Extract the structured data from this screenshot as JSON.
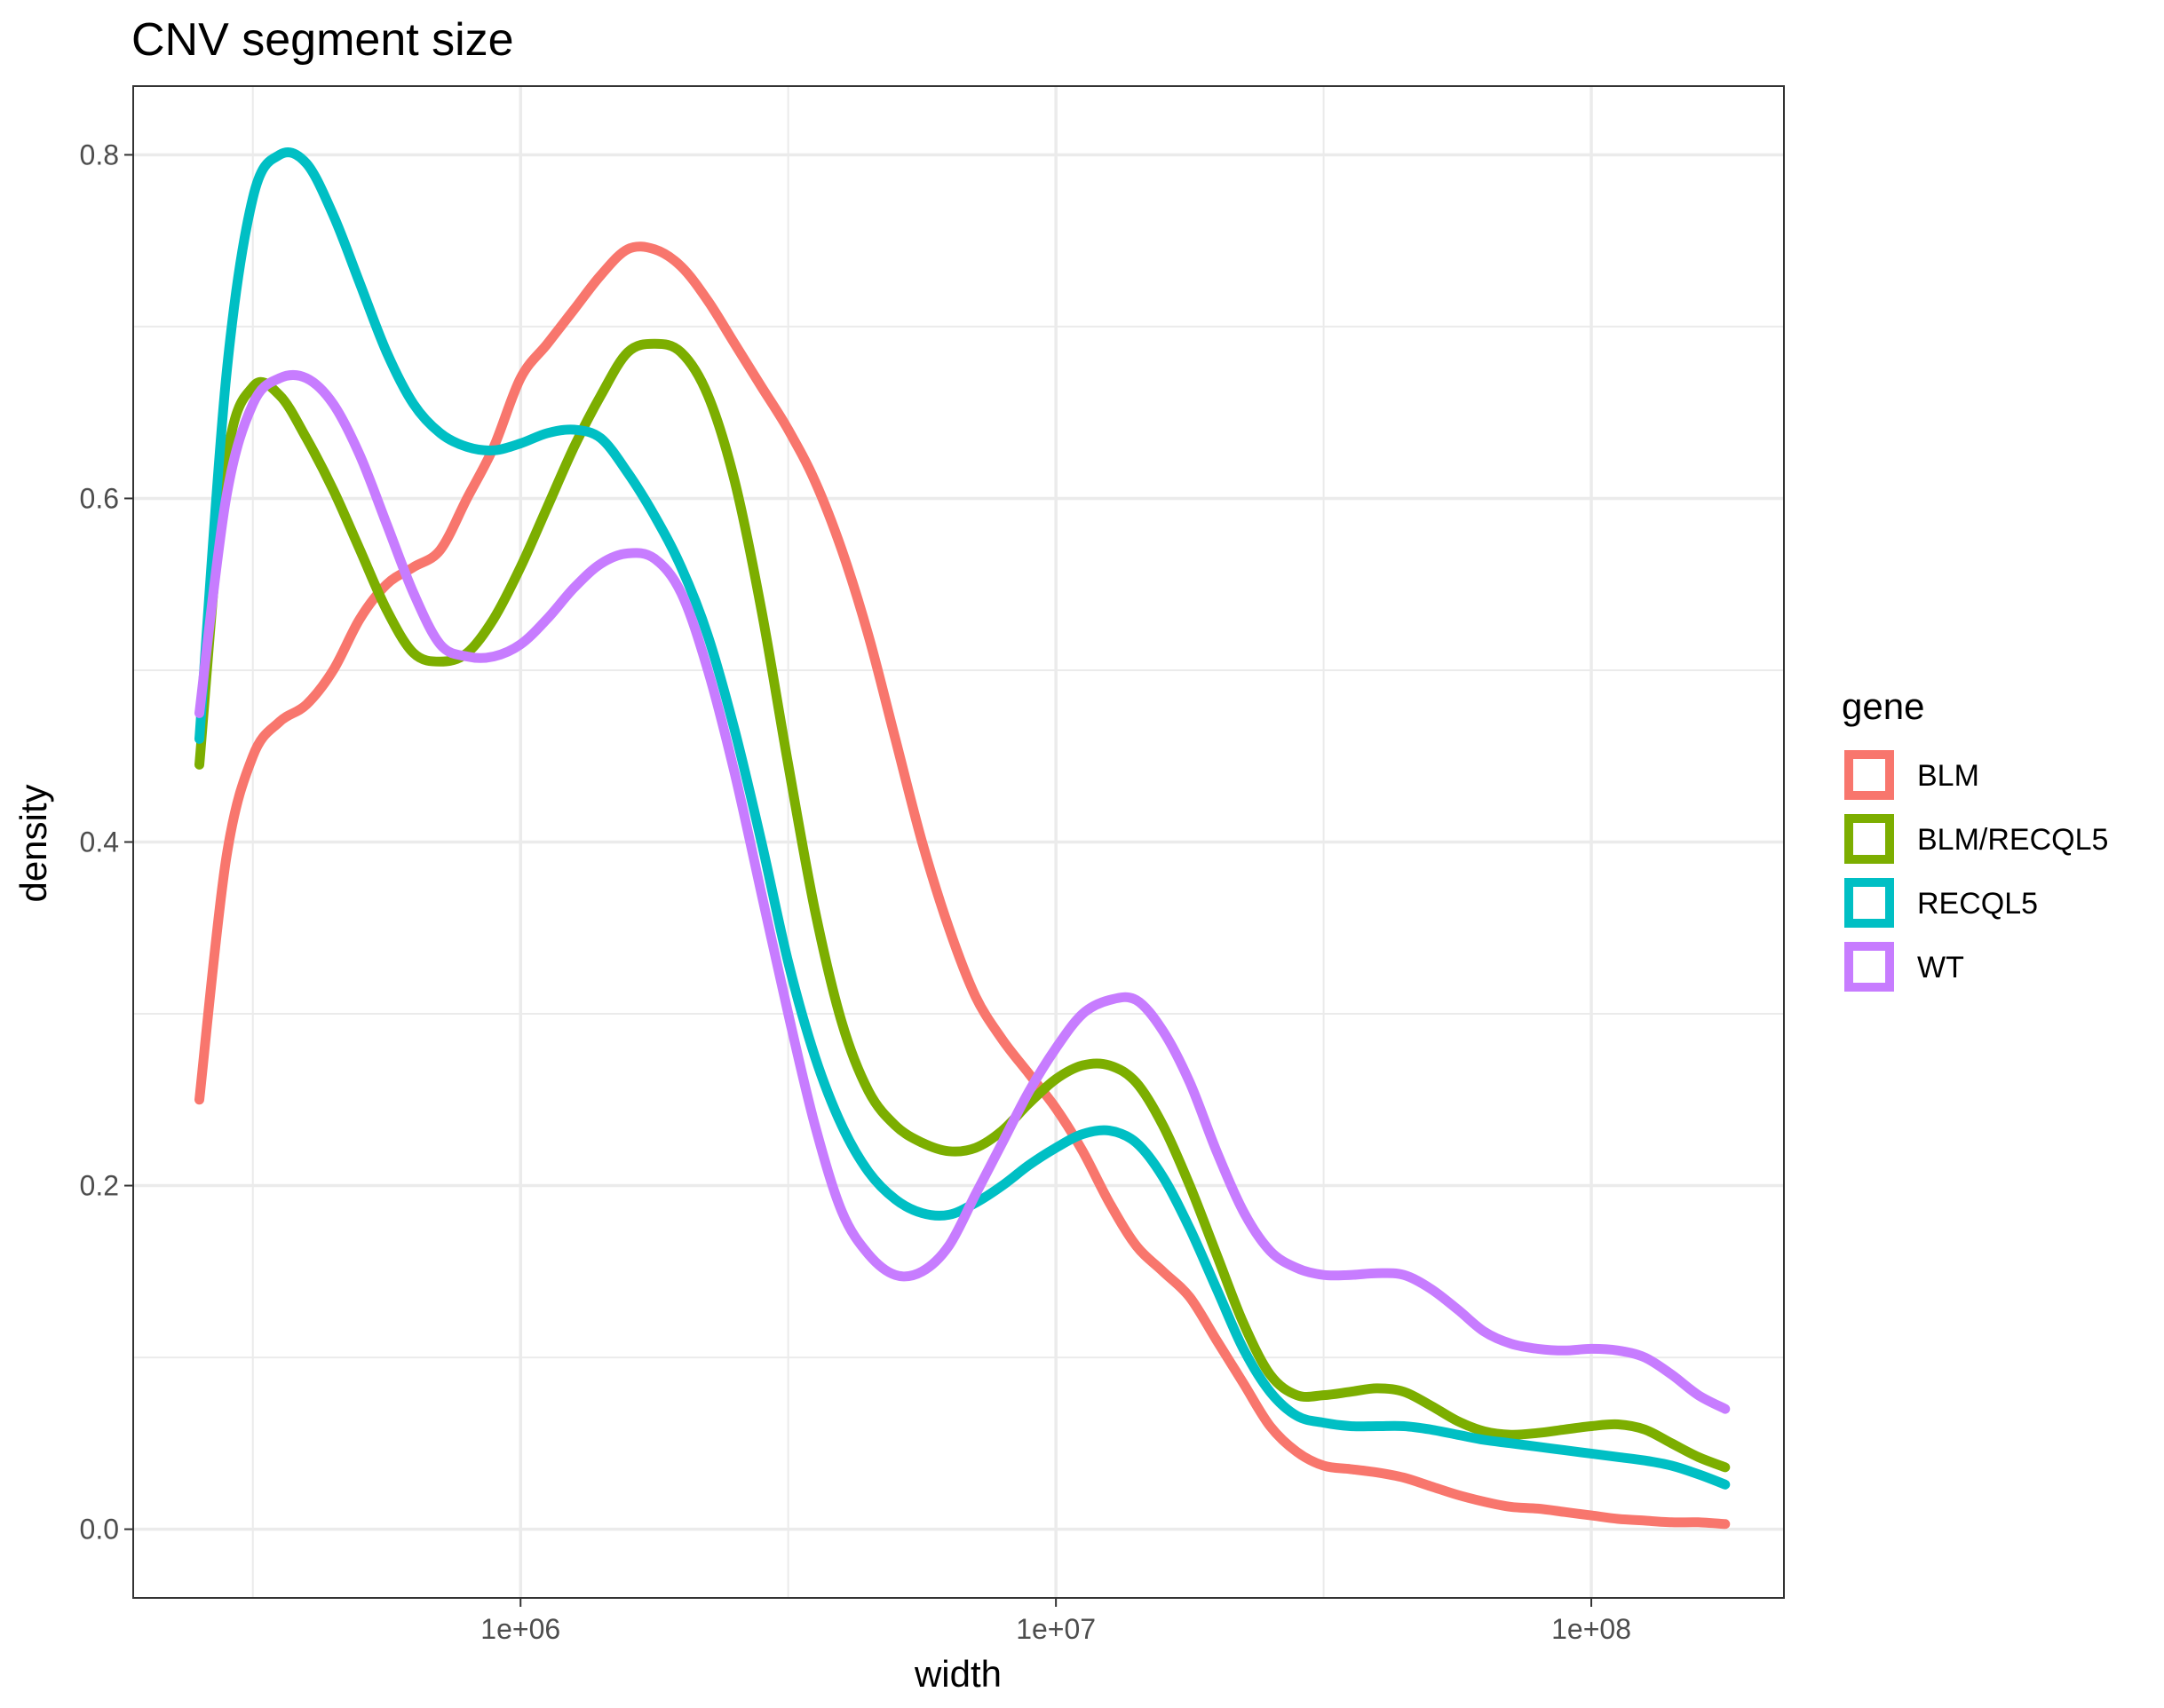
{
  "chart_data": {
    "type": "line",
    "title": "CNV segment size",
    "xlabel": "width",
    "ylabel": "density",
    "x_scale": "log10",
    "xlim": [
      189000,
      229000000
    ],
    "ylim": [
      -0.04,
      0.84
    ],
    "x_ticks": [
      {
        "value": 1000000,
        "label": "1e+06"
      },
      {
        "value": 10000000,
        "label": "1e+07"
      },
      {
        "value": 100000000,
        "label": "1e+08"
      }
    ],
    "x_minor_ticks": [
      316228,
      3162278,
      31622777
    ],
    "y_ticks": [
      {
        "value": 0.0,
        "label": "0.0"
      },
      {
        "value": 0.2,
        "label": "0.2"
      },
      {
        "value": 0.4,
        "label": "0.4"
      },
      {
        "value": 0.6,
        "label": "0.6"
      },
      {
        "value": 0.8,
        "label": "0.8"
      }
    ],
    "y_minor_ticks": [
      0.1,
      0.3,
      0.5,
      0.7
    ],
    "grid": true,
    "legend": {
      "title": "gene",
      "position": "right"
    },
    "series": [
      {
        "name": "BLM",
        "color": "#F8766D",
        "x": [
          251189,
          281838,
          316228,
          354813,
          398107,
          446684,
          501187,
          562341,
          630957,
          707946,
          794328,
          891251,
          1000000,
          1122018,
          1258925,
          1412538,
          1584893,
          1778279,
          1995262,
          2238721,
          2511886,
          2818383,
          3162278,
          3548134,
          3981072,
          4466836,
          5011872,
          5623413,
          6309573,
          7079458,
          7943282,
          8912509,
          10000000,
          11220185,
          12589254,
          14125375,
          15848932,
          17782794,
          19952623,
          22387211,
          25118864,
          28183829,
          31622777,
          35481339,
          39810717,
          44668359,
          50118723,
          56234133,
          63095734,
          70794578,
          79432823,
          89125094,
          100000000,
          112201845,
          125892541,
          141253754,
          158489319,
          177827941
        ],
        "y": [
          0.25,
          0.39,
          0.45,
          0.47,
          0.48,
          0.5,
          0.53,
          0.55,
          0.56,
          0.57,
          0.6,
          0.63,
          0.67,
          0.69,
          0.71,
          0.73,
          0.745,
          0.745,
          0.735,
          0.715,
          0.69,
          0.665,
          0.64,
          0.61,
          0.57,
          0.52,
          0.46,
          0.4,
          0.35,
          0.31,
          0.285,
          0.265,
          0.245,
          0.22,
          0.19,
          0.165,
          0.15,
          0.135,
          0.11,
          0.085,
          0.06,
          0.045,
          0.037,
          0.035,
          0.033,
          0.03,
          0.025,
          0.02,
          0.016,
          0.013,
          0.012,
          0.01,
          0.008,
          0.006,
          0.005,
          0.004,
          0.004,
          0.003
        ]
      },
      {
        "name": "BLM/RECQL5",
        "color": "#7CAE00",
        "x": [
          251189,
          281838,
          316228,
          354813,
          398107,
          446684,
          501187,
          562341,
          630957,
          707946,
          794328,
          891251,
          1000000,
          1122018,
          1258925,
          1412538,
          1584893,
          1778279,
          1995262,
          2238721,
          2511886,
          2818383,
          3162278,
          3548134,
          3981072,
          4466836,
          5011872,
          5623413,
          6309573,
          7079458,
          7943282,
          8912509,
          10000000,
          11220185,
          12589254,
          14125375,
          15848932,
          17782794,
          19952623,
          22387211,
          25118864,
          28183829,
          31622777,
          35481339,
          39810717,
          44668359,
          50118723,
          56234133,
          63095734,
          70794578,
          79432823,
          89125094,
          100000000,
          112201845,
          125892541,
          141253754,
          158489319,
          177827941
        ],
        "y": [
          0.445,
          0.62,
          0.665,
          0.66,
          0.635,
          0.605,
          0.57,
          0.535,
          0.51,
          0.505,
          0.51,
          0.53,
          0.56,
          0.595,
          0.63,
          0.66,
          0.685,
          0.69,
          0.685,
          0.66,
          0.61,
          0.535,
          0.445,
          0.36,
          0.295,
          0.255,
          0.235,
          0.225,
          0.22,
          0.222,
          0.232,
          0.248,
          0.262,
          0.27,
          0.27,
          0.26,
          0.235,
          0.2,
          0.16,
          0.12,
          0.09,
          0.078,
          0.078,
          0.08,
          0.082,
          0.08,
          0.072,
          0.063,
          0.057,
          0.055,
          0.056,
          0.058,
          0.06,
          0.061,
          0.058,
          0.05,
          0.042,
          0.036
        ]
      },
      {
        "name": "RECQL5",
        "color": "#00BFC4",
        "x": [
          251189,
          281838,
          316228,
          354813,
          398107,
          446684,
          501187,
          562341,
          630957,
          707946,
          794328,
          891251,
          1000000,
          1122018,
          1258925,
          1412538,
          1584893,
          1778279,
          1995262,
          2238721,
          2511886,
          2818383,
          3162278,
          3548134,
          3981072,
          4466836,
          5011872,
          5623413,
          6309573,
          7079458,
          7943282,
          8912509,
          10000000,
          11220185,
          12589254,
          14125375,
          15848932,
          17782794,
          19952623,
          22387211,
          25118864,
          28183829,
          31622777,
          35481339,
          39810717,
          44668359,
          50118723,
          56234133,
          63095734,
          70794578,
          79432823,
          89125094,
          100000000,
          112201845,
          125892541,
          141253754,
          158489319,
          177827941
        ],
        "y": [
          0.46,
          0.67,
          0.775,
          0.8,
          0.795,
          0.765,
          0.725,
          0.685,
          0.655,
          0.638,
          0.63,
          0.628,
          0.632,
          0.638,
          0.64,
          0.635,
          0.615,
          0.59,
          0.56,
          0.52,
          0.465,
          0.4,
          0.33,
          0.275,
          0.235,
          0.208,
          0.192,
          0.184,
          0.183,
          0.19,
          0.2,
          0.212,
          0.222,
          0.23,
          0.232,
          0.225,
          0.205,
          0.175,
          0.14,
          0.105,
          0.08,
          0.066,
          0.062,
          0.06,
          0.06,
          0.06,
          0.058,
          0.055,
          0.052,
          0.05,
          0.048,
          0.046,
          0.044,
          0.042,
          0.04,
          0.037,
          0.032,
          0.026
        ]
      },
      {
        "name": "WT",
        "color": "#C77CFF",
        "x": [
          251189,
          281838,
          316228,
          354813,
          398107,
          446684,
          501187,
          562341,
          630957,
          707946,
          794328,
          891251,
          1000000,
          1122018,
          1258925,
          1412538,
          1584893,
          1778279,
          1995262,
          2238721,
          2511886,
          2818383,
          3162278,
          3548134,
          3981072,
          4466836,
          5011872,
          5623413,
          6309573,
          7079458,
          7943282,
          8912509,
          10000000,
          11220185,
          12589254,
          14125375,
          15848932,
          17782794,
          19952623,
          22387211,
          25118864,
          28183829,
          31622777,
          35481339,
          39810717,
          44668359,
          50118723,
          56234133,
          63095734,
          70794578,
          79432823,
          89125094,
          100000000,
          112201845,
          125892541,
          141253754,
          158489319,
          177827941
        ],
        "y": [
          0.475,
          0.6,
          0.655,
          0.67,
          0.67,
          0.655,
          0.625,
          0.585,
          0.545,
          0.515,
          0.508,
          0.508,
          0.515,
          0.53,
          0.548,
          0.562,
          0.568,
          0.565,
          0.545,
          0.5,
          0.44,
          0.37,
          0.3,
          0.235,
          0.185,
          0.16,
          0.148,
          0.15,
          0.165,
          0.195,
          0.225,
          0.255,
          0.28,
          0.3,
          0.308,
          0.308,
          0.29,
          0.26,
          0.22,
          0.185,
          0.162,
          0.152,
          0.148,
          0.148,
          0.149,
          0.148,
          0.14,
          0.128,
          0.115,
          0.108,
          0.105,
          0.104,
          0.105,
          0.104,
          0.1,
          0.09,
          0.078,
          0.07
        ]
      }
    ]
  }
}
